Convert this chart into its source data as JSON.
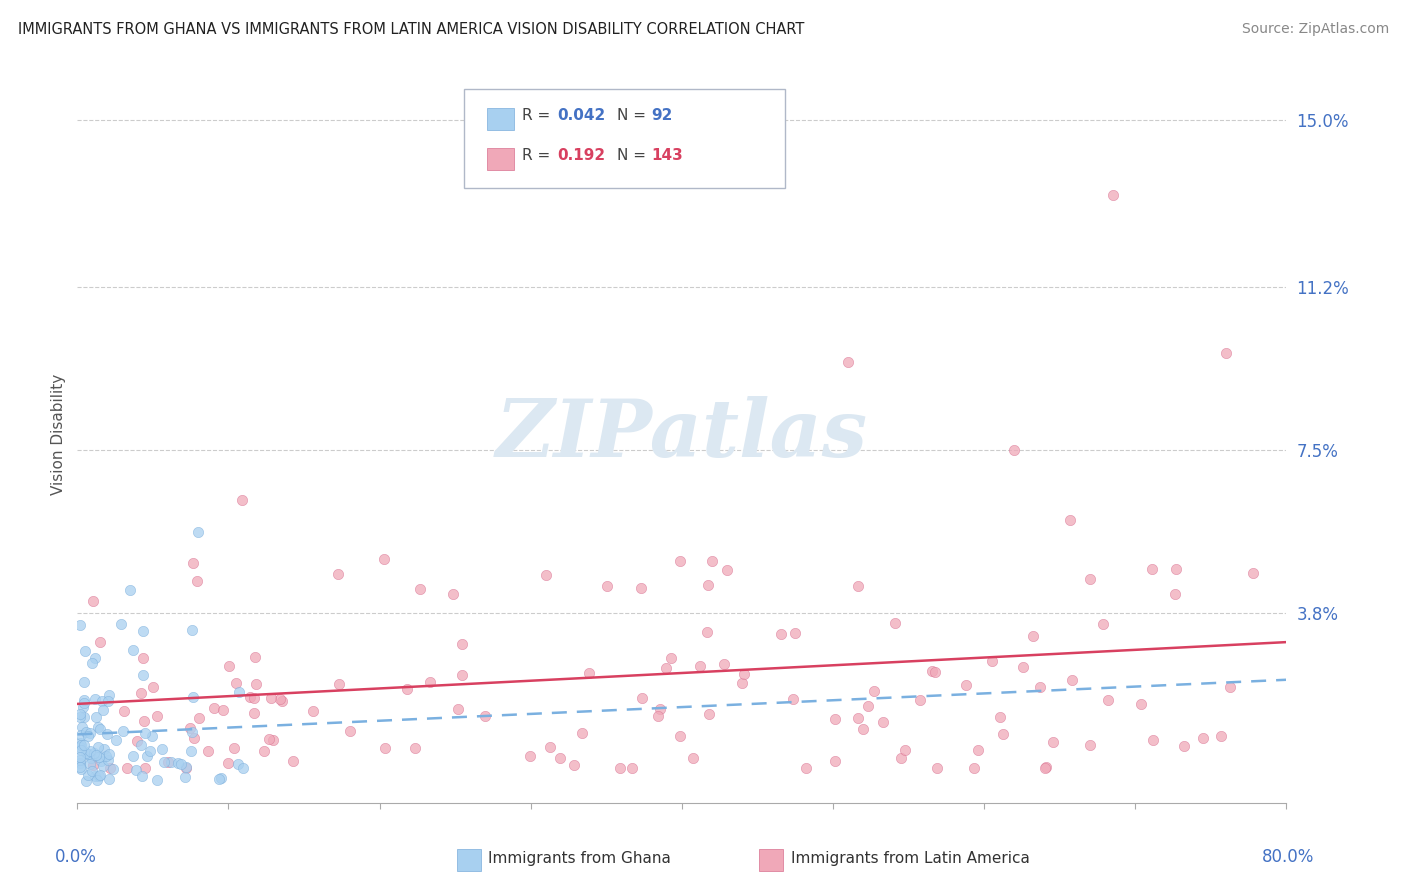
{
  "title": "IMMIGRANTS FROM GHANA VS IMMIGRANTS FROM LATIN AMERICA VISION DISABILITY CORRELATION CHART",
  "source": "Source: ZipAtlas.com",
  "ylabel": "Vision Disability",
  "yticks": [
    0.0,
    0.038,
    0.075,
    0.112,
    0.15
  ],
  "ytick_labels": [
    "",
    "3.8%",
    "7.5%",
    "11.2%",
    "15.0%"
  ],
  "xlim": [
    0.0,
    0.8
  ],
  "ylim": [
    -0.005,
    0.162
  ],
  "ghana_R": 0.042,
  "ghana_N": 92,
  "latam_R": 0.192,
  "latam_N": 143,
  "ghana_color": "#a8d0f0",
  "latam_color": "#f0a8b8",
  "ghana_edge_color": "#7aaddb",
  "latam_edge_color": "#d87090",
  "ghana_line_color": "#7ab0e0",
  "latam_line_color": "#d84060",
  "watermark_text": "ZIPatlas",
  "ghana_seed": 10,
  "latam_seed": 20
}
